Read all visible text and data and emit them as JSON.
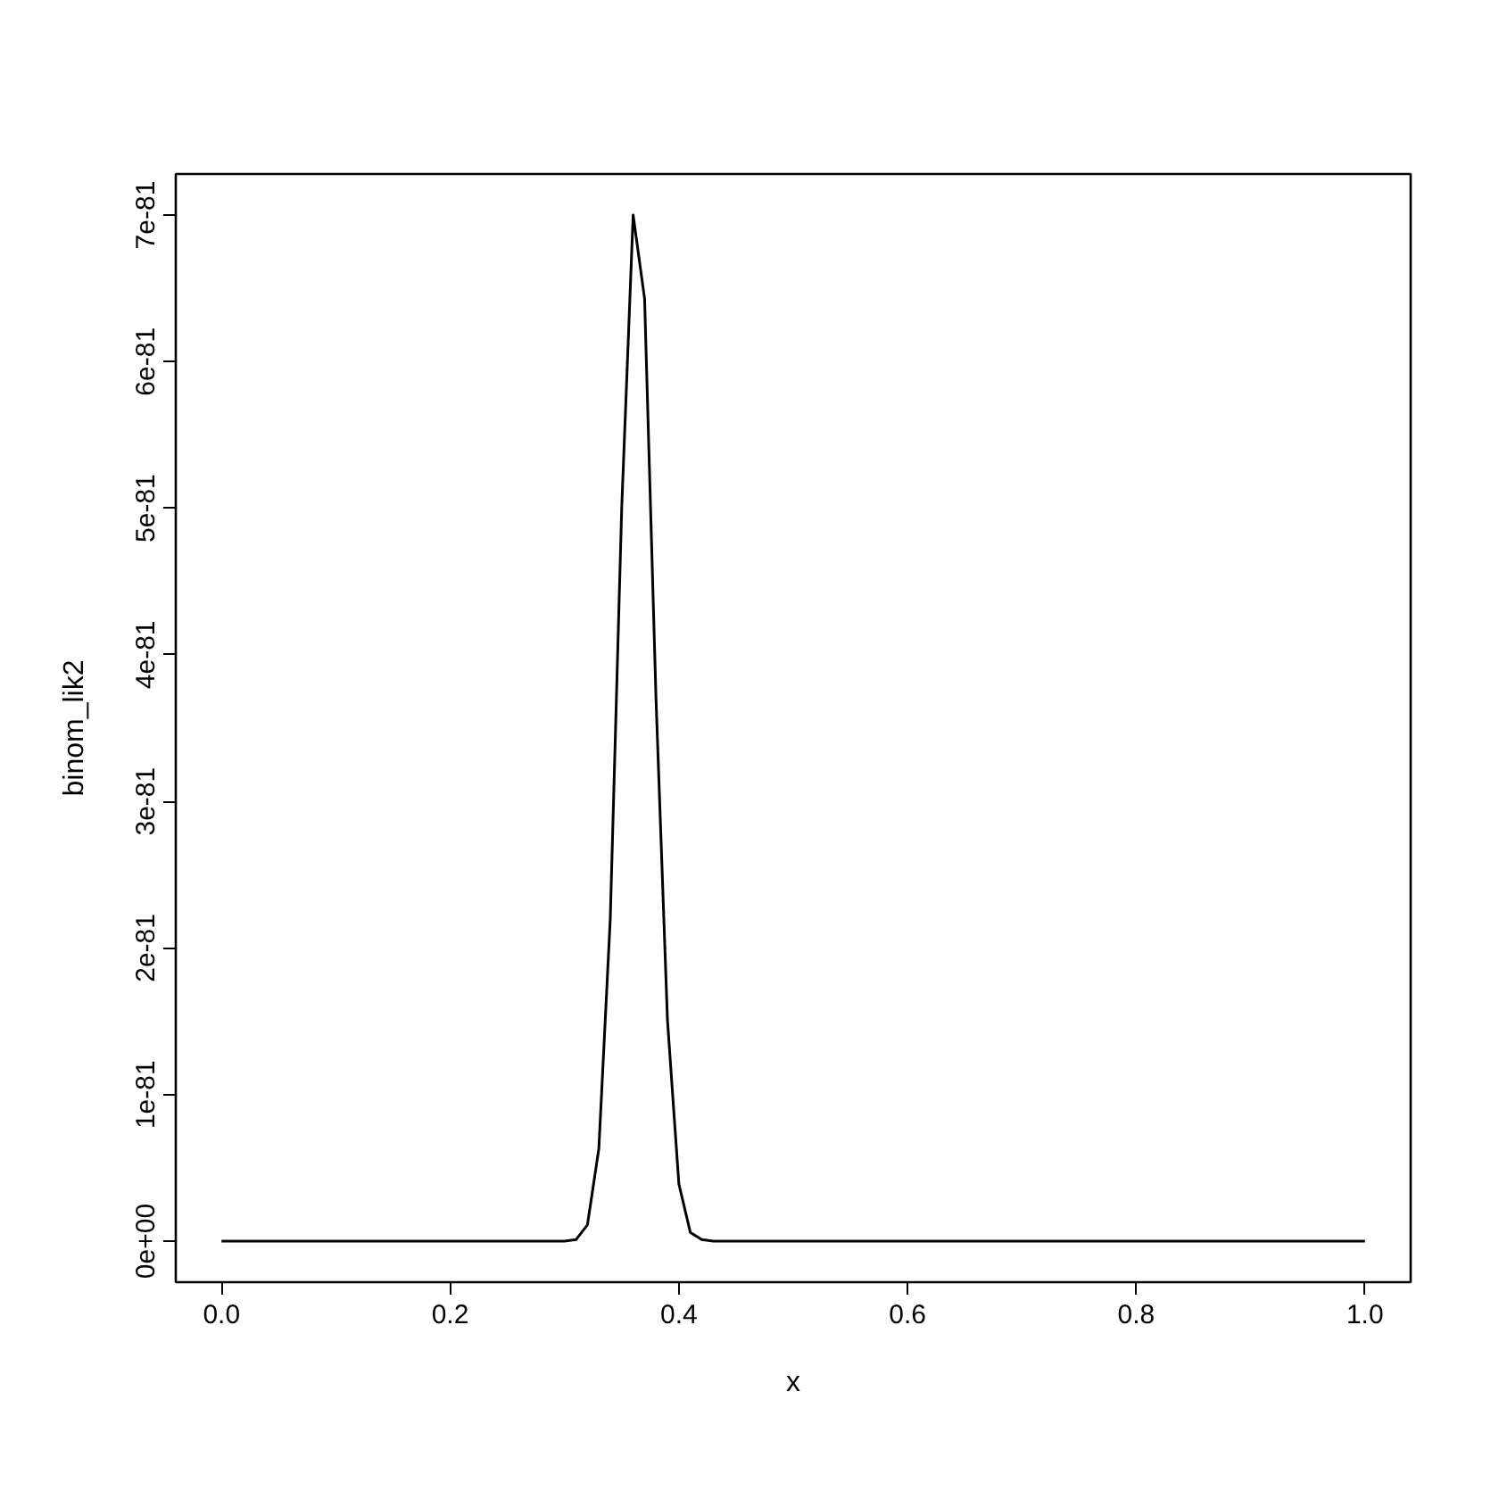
{
  "chart_data": {
    "type": "line",
    "xlabel": "x",
    "ylabel": "binom_lik2",
    "x": [
      0,
      0.01,
      0.02,
      0.03,
      0.04,
      0.05,
      0.06,
      0.07,
      0.08,
      0.09,
      0.1,
      0.11,
      0.12,
      0.13,
      0.14,
      0.15,
      0.16,
      0.17,
      0.18,
      0.19,
      0.2,
      0.21,
      0.22,
      0.23,
      0.24,
      0.25,
      0.26,
      0.27,
      0.28,
      0.29,
      0.3,
      0.31,
      0.32,
      0.33,
      0.34,
      0.35,
      0.36,
      0.37,
      0.38,
      0.39,
      0.4,
      0.41,
      0.42,
      0.43,
      0.44,
      0.45,
      0.46,
      0.47,
      0.48,
      0.49,
      0.5,
      0.51,
      0.52,
      0.53,
      0.54,
      0.55,
      0.56,
      0.57,
      0.58,
      0.59,
      0.6,
      0.61,
      0.62,
      0.63,
      0.64,
      0.65,
      0.66,
      0.67,
      0.68,
      0.69,
      0.7,
      0.71,
      0.72,
      0.73,
      0.74,
      0.75,
      0.76,
      0.77,
      0.78,
      0.79,
      0.8,
      0.81,
      0.82,
      0.83,
      0.84,
      0.85,
      0.86,
      0.87,
      0.88,
      0.89,
      0.9,
      0.91,
      0.92,
      0.93,
      0.94,
      0.95,
      0.96,
      0.97,
      0.98,
      0.99,
      1
    ],
    "values": [
      0,
      0,
      0,
      0,
      0,
      0,
      0,
      0,
      0,
      0,
      0,
      0,
      0,
      0,
      0,
      0,
      0,
      0,
      0,
      0,
      0,
      0,
      0,
      0,
      0,
      0,
      0,
      0,
      0,
      0,
      0,
      1e-83,
      1.1e-82,
      6.3e-82,
      2.2e-81,
      5e-81,
      7e-81,
      6.43e-81,
      3.7e-81,
      1.51e-81,
      3.9e-82,
      6e-83,
      1e-83,
      0,
      0,
      0,
      0,
      0,
      0,
      0,
      0,
      0,
      0,
      0,
      0,
      0,
      0,
      0,
      0,
      0,
      0,
      0,
      0,
      0,
      0,
      0,
      0,
      0,
      0,
      0,
      0,
      0,
      0,
      0,
      0,
      0,
      0,
      0,
      0,
      0,
      0,
      0,
      0,
      0,
      0,
      0,
      0,
      0,
      0,
      0,
      0,
      0,
      0,
      0,
      0,
      0,
      0,
      0,
      0,
      0,
      0
    ],
    "color": "#000000",
    "marker": "none",
    "line_style": "solid",
    "grid": false,
    "xlim": [
      -0.04,
      1.04
    ],
    "ylim": [
      -2.8e-82,
      7.28e-81
    ],
    "xticks": [
      {
        "value": 0,
        "label": "0.0"
      },
      {
        "value": 0.2,
        "label": "0.2"
      },
      {
        "value": 0.4,
        "label": "0.4"
      },
      {
        "value": 0.6,
        "label": "0.6"
      },
      {
        "value": 0.8,
        "label": "0.8"
      },
      {
        "value": 1.0,
        "label": "1.0"
      }
    ],
    "yticks": [
      {
        "value": 0,
        "label": "0e+00"
      },
      {
        "value": 1e-81,
        "label": "1e-81"
      },
      {
        "value": 2e-81,
        "label": "2e-81"
      },
      {
        "value": 3e-81,
        "label": "3e-81"
      },
      {
        "value": 4e-81,
        "label": "4e-81"
      },
      {
        "value": 5e-81,
        "label": "5e-81"
      },
      {
        "value": 6e-81,
        "label": "6e-81"
      },
      {
        "value": 7e-81,
        "label": "7e-81"
      }
    ]
  }
}
